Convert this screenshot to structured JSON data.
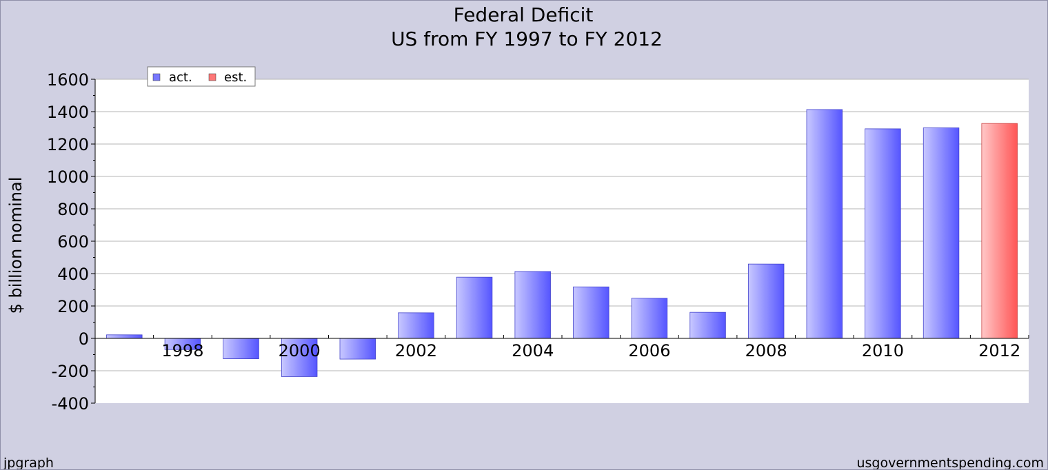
{
  "chart_data": {
    "type": "bar",
    "title": "Federal Deficit",
    "subtitle": "US from FY 1997 to FY 2012",
    "xlabel": "",
    "ylabel": "$ billion nominal",
    "ylim": [
      -400,
      1600
    ],
    "yticks": [
      -400,
      -200,
      0,
      200,
      400,
      600,
      800,
      1000,
      1200,
      1400,
      1600
    ],
    "grid": true,
    "legend_position": "top-left",
    "x": [
      1997,
      1998,
      1999,
      2000,
      2001,
      2002,
      2003,
      2004,
      2005,
      2006,
      2007,
      2008,
      2009,
      2010,
      2011,
      2012
    ],
    "x_tick_labels": [
      "1998",
      "2000",
      "2002",
      "2004",
      "2006",
      "2008",
      "2010",
      "2012"
    ],
    "series": [
      {
        "name": "act.",
        "color": "#5555ff",
        "values": [
          22,
          -69,
          -126,
          -236,
          -128,
          158,
          378,
          413,
          318,
          248,
          161,
          459,
          1413,
          1294,
          1300,
          null
        ]
      },
      {
        "name": "est.",
        "color": "#ff5555",
        "values": [
          null,
          null,
          null,
          null,
          null,
          null,
          null,
          null,
          null,
          null,
          null,
          null,
          null,
          null,
          null,
          1327
        ]
      }
    ]
  },
  "footer": {
    "left": "jpgraph",
    "right": "usgovernmentspending.com"
  },
  "colors": {
    "background": "#d0d0e2",
    "plot_background": "#ffffff",
    "grid": "#b4b4b4"
  }
}
